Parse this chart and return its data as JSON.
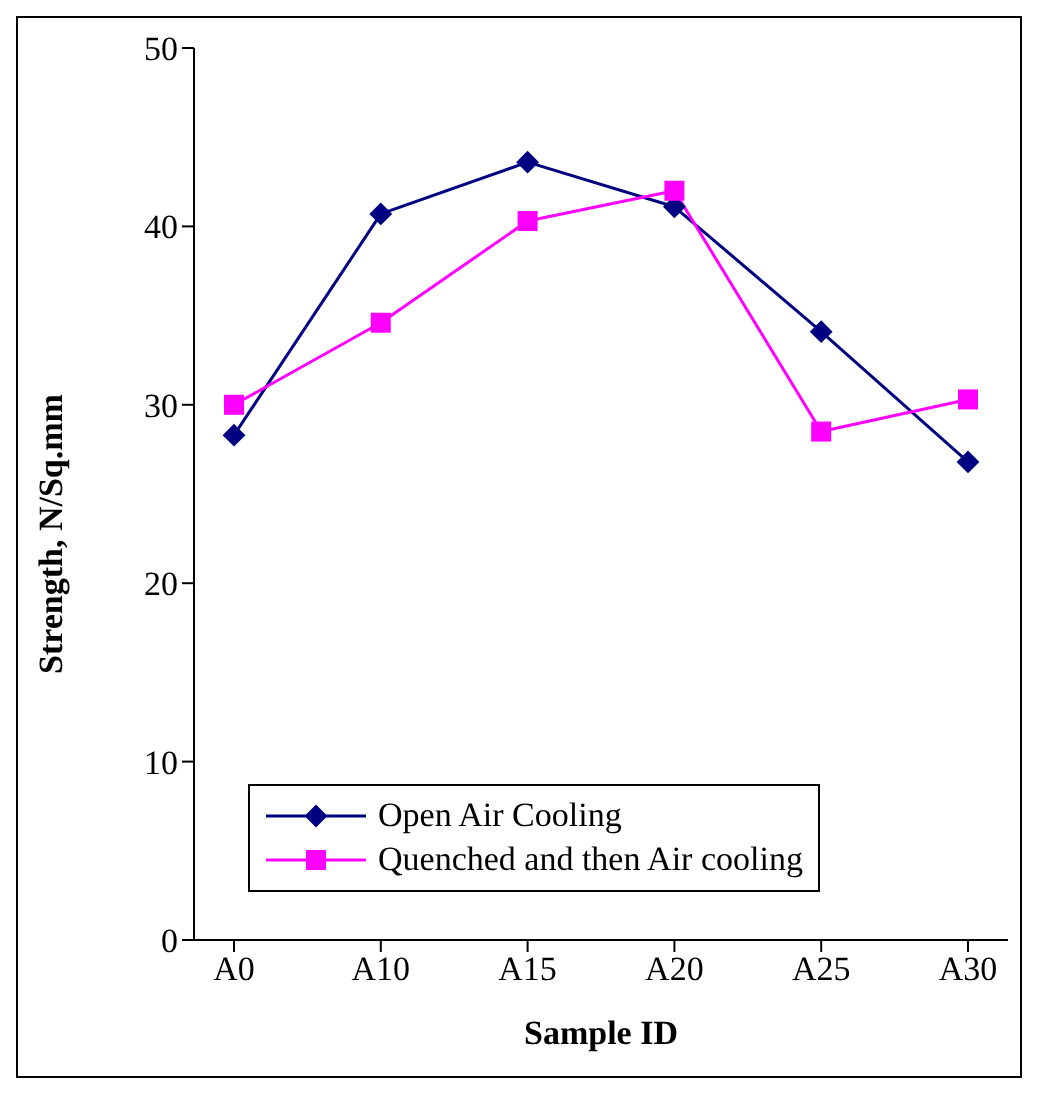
{
  "chart_data": {
    "type": "line",
    "xlabel": "Sample ID",
    "ylabel": "Strength, N/Sq.mm",
    "categories": [
      "A0",
      "A10",
      "A15",
      "A20",
      "A25",
      "A30"
    ],
    "series": [
      {
        "name": "Open Air Cooling",
        "color": "#000080",
        "marker": "diamond",
        "values": [
          28.3,
          40.7,
          43.6,
          41.1,
          34.1,
          26.8
        ]
      },
      {
        "name": "Quenched and then Air cooling",
        "color": "#ff00ff",
        "marker": "square",
        "values": [
          30.0,
          34.6,
          40.3,
          42.0,
          28.5,
          30.3
        ]
      }
    ],
    "ylim": [
      0,
      50
    ],
    "yticks": [
      0,
      10,
      20,
      30,
      40,
      50
    ],
    "grid": false,
    "legend": "bottom left",
    "line_style": "solid"
  }
}
